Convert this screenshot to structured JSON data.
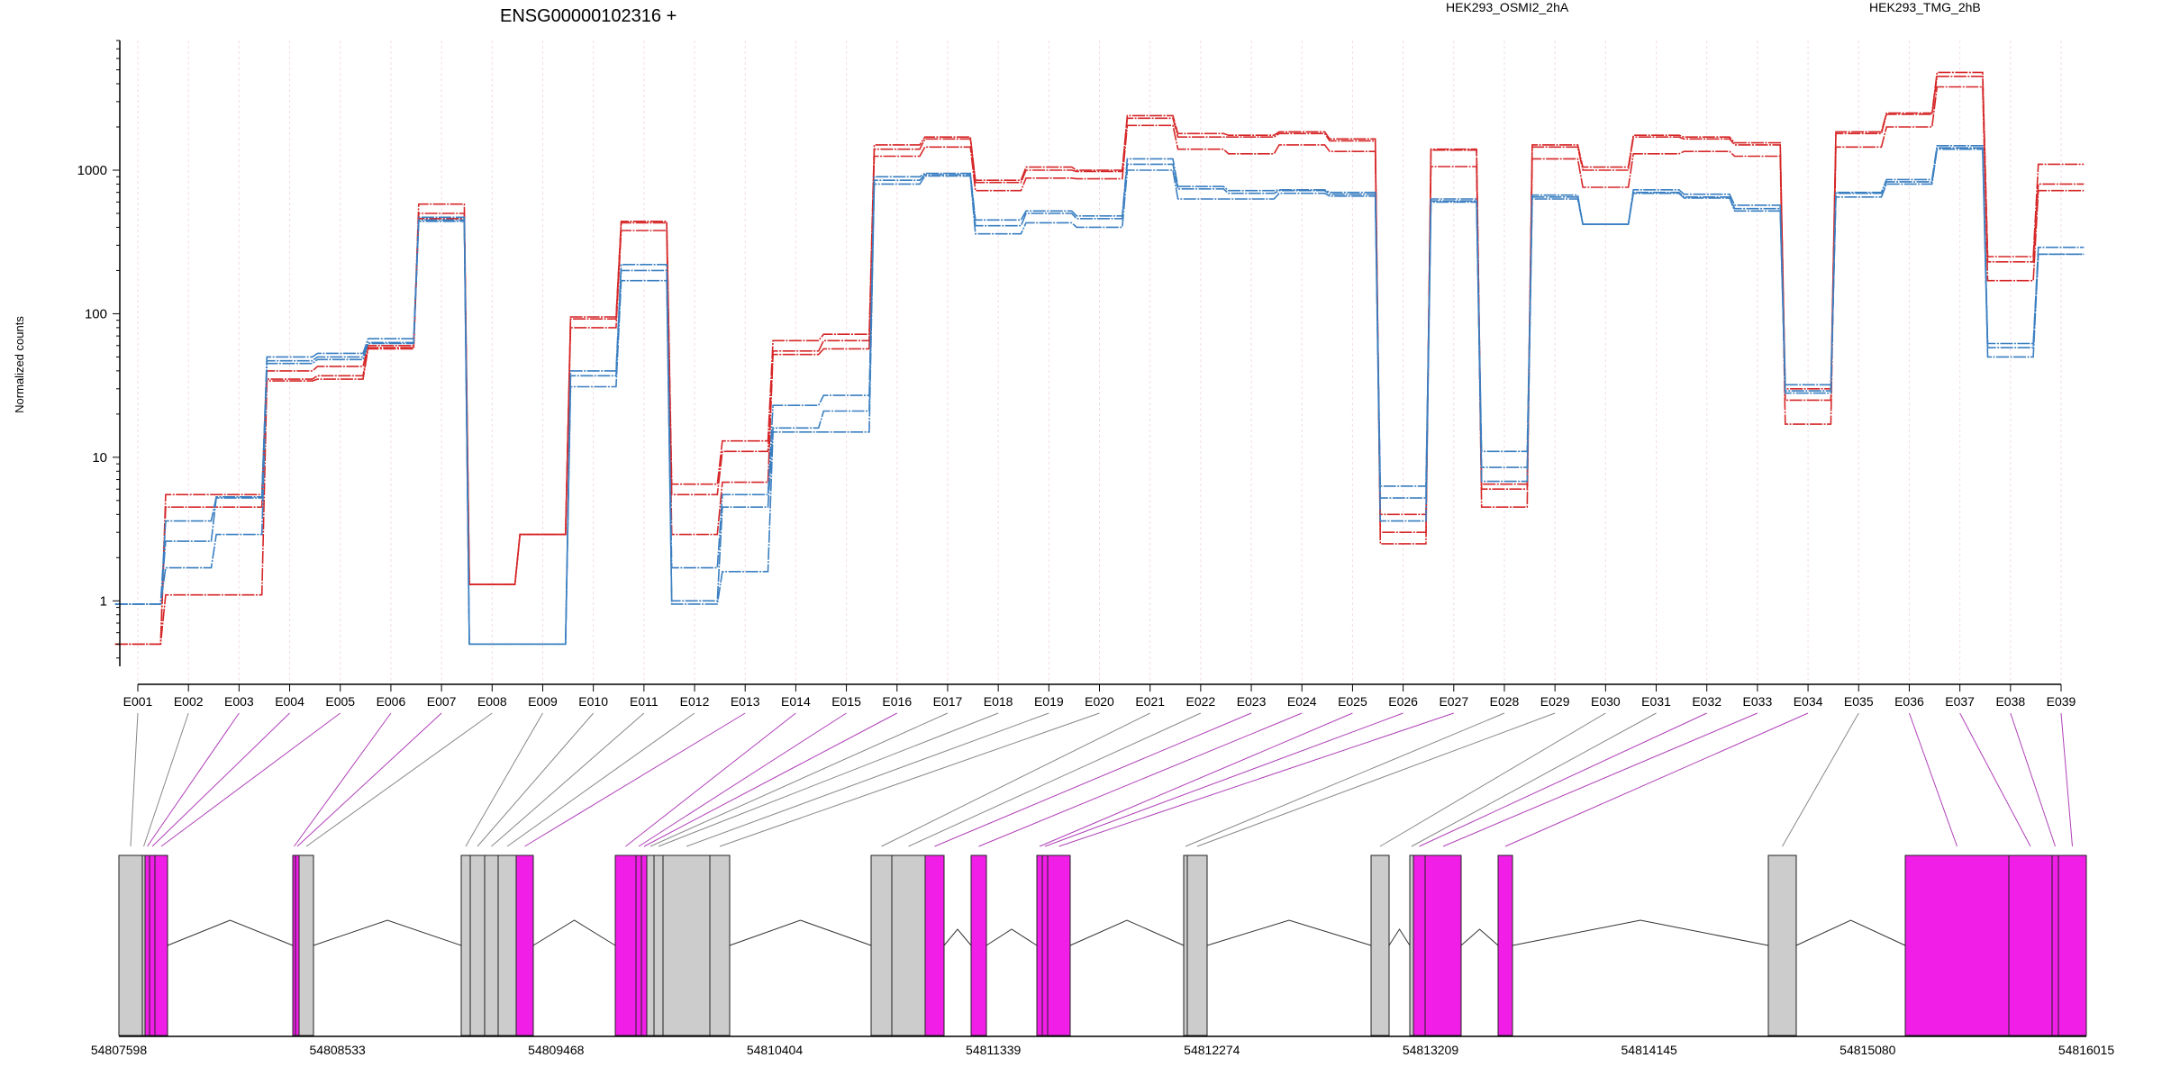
{
  "chart_data": {
    "type": "line",
    "title": "ENSG00000102316 +",
    "ylabel": "Normalized counts",
    "xlabel": "",
    "yscale": "log",
    "ylim": [
      0.35,
      8000
    ],
    "yticks": [
      1,
      10,
      100,
      1000
    ],
    "grid": "vertical dashed",
    "legend": [
      {
        "name": "HEK293_OSMI2_2hA",
        "color": "#d62728"
      },
      {
        "name": "HEK293_TMG_2hB",
        "color": "#3a7fc1"
      }
    ],
    "categories": [
      "E001",
      "E002",
      "E003",
      "E004",
      "E005",
      "E006",
      "E007",
      "E008",
      "E009",
      "E010",
      "E011",
      "E012",
      "E013",
      "E014",
      "E015",
      "E016",
      "E017",
      "E018",
      "E019",
      "E020",
      "E021",
      "E022",
      "E023",
      "E024",
      "E025",
      "E026",
      "E027",
      "E028",
      "E029",
      "E030",
      "E031",
      "E032",
      "E033",
      "E034",
      "E035",
      "E036",
      "E037",
      "E038",
      "E039"
    ],
    "series": [
      {
        "name": "HEK293_OSMI2_2hA",
        "color": "#d62728",
        "values": [
          0.5,
          5.5,
          5.5,
          40,
          43,
          60,
          580,
          1.3,
          2.9,
          95,
          440,
          6.5,
          13,
          65,
          72,
          1500,
          1700,
          850,
          1050,
          1000,
          2400,
          1800,
          1750,
          1850,
          1650,
          2.5,
          1400,
          6.5,
          1500,
          1050,
          1750,
          1700,
          1550,
          25,
          1850,
          2500,
          4800,
          250,
          1100
        ]
      },
      {
        "name": "HEK293_OSMI2_2hA",
        "color": "#d62728",
        "values": [
          0.5,
          4.5,
          4.5,
          35,
          37,
          58,
          500,
          1.3,
          2.9,
          92,
          430,
          5.5,
          11,
          55,
          65,
          1400,
          1650,
          820,
          1000,
          980,
          2300,
          1700,
          1700,
          1800,
          1600,
          3.0,
          1380,
          6.0,
          1450,
          1000,
          1700,
          1650,
          1500,
          30,
          1800,
          2450,
          4500,
          230,
          800
        ]
      },
      {
        "name": "HEK293_OSMI2_2hA",
        "color": "#d62728",
        "values": [
          0.5,
          1.1,
          1.1,
          34,
          35,
          57,
          460,
          1.3,
          2.9,
          80,
          380,
          2.9,
          6.7,
          52,
          57,
          1250,
          1450,
          720,
          880,
          870,
          2050,
          1400,
          1300,
          1500,
          1350,
          4.0,
          1060,
          4.5,
          1200,
          760,
          1300,
          1350,
          1250,
          17,
          1450,
          2000,
          3800,
          170,
          720
        ]
      },
      {
        "name": "HEK293_TMG_2hB",
        "color": "#3a7fc1",
        "values": [
          0.95,
          3.6,
          5.3,
          50,
          53,
          67,
          470,
          0.5,
          0.5,
          40,
          220,
          1.7,
          5.5,
          23,
          27,
          900,
          950,
          450,
          520,
          480,
          1200,
          770,
          720,
          730,
          700,
          6.3,
          630,
          11,
          670,
          420,
          730,
          680,
          570,
          32,
          700,
          860,
          1480,
          62,
          290
        ]
      },
      {
        "name": "HEK293_TMG_2hB",
        "color": "#3a7fc1",
        "values": [
          0.95,
          2.6,
          5.2,
          47,
          50,
          63,
          450,
          0.5,
          0.5,
          37,
          200,
          1.0,
          4.5,
          16,
          21,
          850,
          930,
          410,
          500,
          460,
          1100,
          740,
          690,
          720,
          680,
          5.2,
          610,
          8.5,
          650,
          420,
          700,
          650,
          540,
          29,
          690,
          830,
          1430,
          58,
          260
        ]
      },
      {
        "name": "HEK293_TMG_2hB",
        "color": "#3a7fc1",
        "values": [
          0.95,
          1.7,
          2.9,
          45,
          48,
          62,
          440,
          0.5,
          0.5,
          31,
          170,
          0.95,
          1.6,
          15,
          15,
          800,
          910,
          360,
          430,
          400,
          1000,
          630,
          630,
          690,
          660,
          3.6,
          600,
          6.8,
          630,
          420,
          690,
          640,
          520,
          28,
          650,
          800,
          1400,
          50,
          260
        ]
      }
    ],
    "gene_model": {
      "coordinate_ticks": [
        "54807598",
        "54808533",
        "54809468",
        "54810404",
        "54811339",
        "54812274",
        "54813209",
        "54814145",
        "54815080",
        "54816015"
      ],
      "exons": [
        {
          "id": "E001",
          "status": "normal"
        },
        {
          "id": "E002",
          "status": "normal"
        },
        {
          "id": "E003",
          "status": "significant"
        },
        {
          "id": "E004",
          "status": "significant"
        },
        {
          "id": "E005",
          "status": "significant"
        },
        {
          "id": "E006",
          "status": "significant"
        },
        {
          "id": "E007",
          "status": "significant"
        },
        {
          "id": "E008",
          "status": "normal"
        },
        {
          "id": "E009",
          "status": "normal"
        },
        {
          "id": "E010",
          "status": "normal"
        },
        {
          "id": "E011",
          "status": "normal"
        },
        {
          "id": "E012",
          "status": "normal"
        },
        {
          "id": "E013",
          "status": "significant"
        },
        {
          "id": "E014",
          "status": "significant"
        },
        {
          "id": "E015",
          "status": "significant"
        },
        {
          "id": "E016",
          "status": "significant"
        },
        {
          "id": "E017",
          "status": "normal"
        },
        {
          "id": "E018",
          "status": "normal"
        },
        {
          "id": "E019",
          "status": "normal"
        },
        {
          "id": "E020",
          "status": "normal"
        },
        {
          "id": "E021",
          "status": "normal"
        },
        {
          "id": "E022",
          "status": "normal"
        },
        {
          "id": "E023",
          "status": "significant"
        },
        {
          "id": "E024",
          "status": "significant"
        },
        {
          "id": "E025",
          "status": "significant"
        },
        {
          "id": "E026",
          "status": "significant"
        },
        {
          "id": "E027",
          "status": "significant"
        },
        {
          "id": "E028",
          "status": "normal"
        },
        {
          "id": "E029",
          "status": "normal"
        },
        {
          "id": "E030",
          "status": "normal"
        },
        {
          "id": "E031",
          "status": "normal"
        },
        {
          "id": "E032",
          "status": "significant"
        },
        {
          "id": "E033",
          "status": "significant"
        },
        {
          "id": "E034",
          "status": "significant"
        },
        {
          "id": "E035",
          "status": "normal"
        },
        {
          "id": "E036",
          "status": "significant"
        },
        {
          "id": "E037",
          "status": "significant"
        },
        {
          "id": "E038",
          "status": "significant"
        },
        {
          "id": "E039",
          "status": "significant"
        }
      ],
      "colors": {
        "normal": "#cccccc",
        "significant": "#f01ee6",
        "connector_normal": "#888888",
        "connector_significant": "#b040b8"
      }
    }
  }
}
